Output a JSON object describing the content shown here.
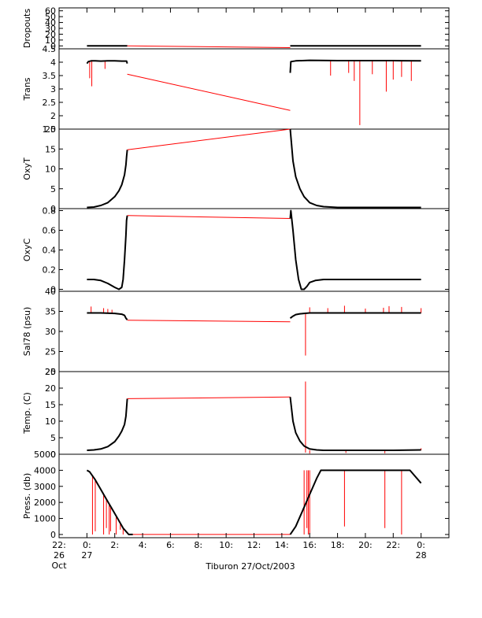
{
  "chart_data": {
    "type": "line",
    "title": "",
    "xlabel": "Tiburon 27/Oct/2003",
    "x_unit": "hours since 2003-10-27 00:00",
    "xlim": [
      -2,
      26
    ],
    "x_ticks": [
      {
        "x": -2,
        "lines": [
          "22:",
          "26",
          "Oct"
        ]
      },
      {
        "x": 0,
        "lines": [
          "0:",
          "27"
        ]
      },
      {
        "x": 2,
        "lines": [
          "2:"
        ]
      },
      {
        "x": 4,
        "lines": [
          "4:"
        ]
      },
      {
        "x": 6,
        "lines": [
          "6:"
        ]
      },
      {
        "x": 8,
        "lines": [
          "8:"
        ]
      },
      {
        "x": 10,
        "lines": [
          "10:"
        ]
      },
      {
        "x": 12,
        "lines": [
          "12:"
        ]
      },
      {
        "x": 14,
        "lines": [
          "14:"
        ]
      },
      {
        "x": 16,
        "lines": [
          "16:"
        ]
      },
      {
        "x": 18,
        "lines": [
          "18:"
        ]
      },
      {
        "x": 20,
        "lines": [
          "20:"
        ]
      },
      {
        "x": 22,
        "lines": [
          "22:"
        ]
      },
      {
        "x": 24,
        "lines": [
          "0:",
          "28"
        ]
      }
    ],
    "line_colors": {
      "data": "#000000",
      "gap": "#ff0000",
      "axis": "#000000"
    },
    "panels": [
      {
        "ylabel": "Dropouts",
        "ylim": [
          -5,
          65
        ],
        "yticks": [
          0,
          10,
          20,
          30,
          40,
          50,
          60
        ],
        "series": [
          {
            "name": "",
            "style": "data",
            "x": [
              0.0,
              2.9
            ],
            "y": [
              0,
              0
            ]
          },
          {
            "name": "",
            "style": "gap",
            "x": [
              2.9,
              14.6
            ],
            "y": [
              0,
              -3
            ]
          },
          {
            "name": "",
            "style": "data",
            "x": [
              14.6,
              24.0
            ],
            "y": [
              0,
              0
            ]
          }
        ]
      },
      {
        "ylabel": "Trans",
        "ylim": [
          1.5,
          4.5
        ],
        "yticks": [
          1.5,
          2.0,
          2.5,
          3.0,
          3.5,
          4.0,
          4.5
        ],
        "series": [
          {
            "name": "",
            "style": "data",
            "x": [
              0.0,
              0.1,
              0.3,
              0.6,
              1.0,
              1.5,
              2.0,
              2.5,
              2.85,
              2.9
            ],
            "y": [
              3.95,
              4.02,
              4.05,
              4.05,
              4.04,
              4.05,
              4.05,
              4.04,
              4.04,
              3.95
            ]
          },
          {
            "name": "",
            "style": "gap",
            "x": [
              2.9,
              14.6
            ],
            "y": [
              3.55,
              2.2
            ]
          },
          {
            "name": "",
            "style": "data",
            "x": [
              14.6,
              14.65,
              15.0,
              16.0,
              18.0,
              20.0,
              22.0,
              24.0
            ],
            "y": [
              3.6,
              4.02,
              4.05,
              4.07,
              4.06,
              4.06,
              4.06,
              4.05
            ]
          }
        ],
        "spikes": {
          "base": 4.05,
          "x": [
            0.2,
            0.35,
            1.3,
            17.5,
            18.8,
            19.2,
            19.6,
            20.5,
            21.5,
            22.0,
            22.6,
            23.3
          ],
          "y": [
            3.4,
            3.1,
            3.75,
            3.5,
            3.6,
            3.3,
            1.65,
            3.55,
            2.9,
            3.35,
            3.45,
            3.3
          ]
        }
      },
      {
        "ylabel": "OxyT",
        "ylim": [
          0,
          20
        ],
        "yticks": [
          0,
          5,
          10,
          15,
          20
        ],
        "series": [
          {
            "name": "",
            "style": "data",
            "x": [
              0.0,
              0.5,
              1.0,
              1.5,
              2.0,
              2.3,
              2.5,
              2.7,
              2.8,
              2.85,
              2.9
            ],
            "y": [
              0.3,
              0.4,
              0.8,
              1.5,
              3.0,
              4.5,
              6.0,
              8.5,
              11.0,
              13.0,
              14.8
            ]
          },
          {
            "name": "",
            "style": "gap",
            "x": [
              2.9,
              14.6
            ],
            "y": [
              14.8,
              20.0
            ]
          },
          {
            "name": "",
            "style": "data",
            "x": [
              14.6,
              14.8,
              15.0,
              15.3,
              15.6,
              16.0,
              16.5,
              17.0,
              18.0,
              20.0,
              22.0,
              24.0
            ],
            "y": [
              20.0,
              12.0,
              8.0,
              5.0,
              3.0,
              1.5,
              0.8,
              0.5,
              0.3,
              0.3,
              0.3,
              0.3
            ]
          }
        ]
      },
      {
        "ylabel": "OxyC",
        "ylim": [
          -0.02,
          0.82
        ],
        "yticks": [
          0.0,
          0.2,
          0.4,
          0.6,
          0.8
        ],
        "series": [
          {
            "name": "",
            "style": "data",
            "x": [
              0.0,
              0.5,
              1.0,
              1.5,
              2.0,
              2.3,
              2.5,
              2.6,
              2.7,
              2.8,
              2.85,
              2.9
            ],
            "y": [
              0.1,
              0.1,
              0.09,
              0.06,
              0.02,
              0.0,
              0.02,
              0.1,
              0.3,
              0.55,
              0.7,
              0.75
            ]
          },
          {
            "name": "",
            "style": "gap",
            "x": [
              2.9,
              14.6
            ],
            "y": [
              0.75,
              0.72
            ]
          },
          {
            "name": "",
            "style": "data",
            "x": [
              14.6,
              14.65,
              14.8,
              15.0,
              15.2,
              15.4,
              15.6,
              15.8,
              16.0,
              16.4,
              17.0,
              18.0,
              20.0,
              22.0,
              24.0
            ],
            "y": [
              0.72,
              0.8,
              0.6,
              0.3,
              0.1,
              0.0,
              0.0,
              0.03,
              0.07,
              0.09,
              0.1,
              0.1,
              0.1,
              0.1,
              0.1
            ]
          }
        ]
      },
      {
        "ylabel": "Sal78 (psu)",
        "ylim": [
          20,
          40
        ],
        "yticks": [
          20,
          25,
          30,
          35,
          40
        ],
        "series": [
          {
            "name": "",
            "style": "data",
            "x": [
              0.0,
              1.0,
              2.0,
              2.5,
              2.7,
              2.8,
              2.9
            ],
            "y": [
              34.6,
              34.6,
              34.5,
              34.3,
              34.0,
              33.3,
              32.9
            ]
          },
          {
            "name": "",
            "style": "gap",
            "x": [
              2.9,
              14.6
            ],
            "y": [
              32.8,
              32.4
            ]
          },
          {
            "name": "",
            "style": "data",
            "x": [
              14.6,
              14.8,
              15.0,
              15.3,
              15.6,
              16.0,
              17.0,
              20.0,
              24.0
            ],
            "y": [
              33.3,
              33.8,
              34.2,
              34.4,
              34.5,
              34.6,
              34.6,
              34.6,
              34.6
            ]
          }
        ],
        "spikes": {
          "base": 34.6,
          "x": [
            0.3,
            1.2,
            1.5,
            1.8,
            16.0,
            17.3,
            18.5,
            20.0,
            21.3,
            21.7,
            22.6,
            24.0
          ],
          "y": [
            36.2,
            35.8,
            35.6,
            35.4,
            36.0,
            35.8,
            36.4,
            35.7,
            35.9,
            36.3,
            36.1,
            35.8
          ]
        },
        "drop": {
          "x": 15.7,
          "y": [
            34.5,
            24.0
          ]
        }
      },
      {
        "ylabel": "Temp. (C)",
        "ylim": [
          0,
          25
        ],
        "yticks": [
          0,
          5,
          10,
          15,
          20,
          25
        ],
        "series": [
          {
            "name": "",
            "style": "data",
            "x": [
              0.0,
              0.5,
              1.0,
              1.5,
              2.0,
              2.3,
              2.5,
              2.7,
              2.8,
              2.85,
              2.9
            ],
            "y": [
              1.2,
              1.3,
              1.6,
              2.3,
              3.8,
              5.5,
              7.0,
              9.0,
              11.5,
              14.0,
              16.8
            ]
          },
          {
            "name": "",
            "style": "gap",
            "x": [
              2.9,
              14.6
            ],
            "y": [
              16.8,
              17.3
            ]
          },
          {
            "name": "",
            "style": "data",
            "x": [
              14.6,
              14.8,
              15.0,
              15.3,
              15.6,
              16.0,
              16.5,
              17.0,
              18.0,
              20.0,
              22.0,
              24.0
            ],
            "y": [
              17.3,
              10.0,
              6.5,
              4.0,
              2.5,
              1.6,
              1.3,
              1.2,
              1.2,
              1.2,
              1.2,
              1.3
            ]
          }
        ],
        "spikes": {
          "base": 1.2,
          "x": [
            16.0,
            18.6,
            21.4,
            24.0
          ],
          "y": [
            0.2,
            0.4,
            0.3,
            1.8
          ]
        },
        "drop": {
          "x": 15.7,
          "y": [
            22.0,
            0.5
          ]
        }
      },
      {
        "ylabel": "Press. (db)",
        "ylim": [
          -200,
          5000
        ],
        "yticks": [
          0,
          1000,
          2000,
          3000,
          4000,
          5000
        ],
        "series": [
          {
            "name": "",
            "style": "data",
            "x": [
              0.0,
              0.2,
              0.6,
              1.0,
              1.4,
              1.8,
              2.2,
              2.6,
              3.0,
              3.3
            ],
            "y": [
              4000,
              3900,
              3400,
              2800,
              2200,
              1600,
              1000,
              400,
              0,
              0
            ]
          },
          {
            "name": "",
            "style": "gap",
            "x": [
              3.3,
              14.6
            ],
            "y": [
              0,
              0
            ]
          },
          {
            "name": "",
            "style": "data",
            "x": [
              14.6,
              15.0,
              15.5,
              16.0,
              16.5,
              16.8,
              18.0,
              20.0,
              22.0,
              23.2,
              24.0
            ],
            "y": [
              0,
              500,
              1500,
              2500,
              3500,
              4000,
              4000,
              4000,
              4000,
              4000,
              3200
            ]
          }
        ],
        "spikes_from_top": {
          "top": 4000,
          "x": [
            16.0,
            18.5,
            21.4,
            22.6
          ],
          "y": [
            0,
            500,
            400,
            0
          ]
        },
        "spikes_from_curve": {
          "x": [
            0.4,
            0.6,
            1.2,
            1.4,
            1.6,
            1.7,
            2.1,
            2.4,
            2.6,
            15.6,
            15.8,
            15.9
          ],
          "y": [
            0,
            200,
            0,
            400,
            0,
            200,
            0,
            300,
            0,
            0,
            400,
            0
          ]
        }
      }
    ]
  }
}
